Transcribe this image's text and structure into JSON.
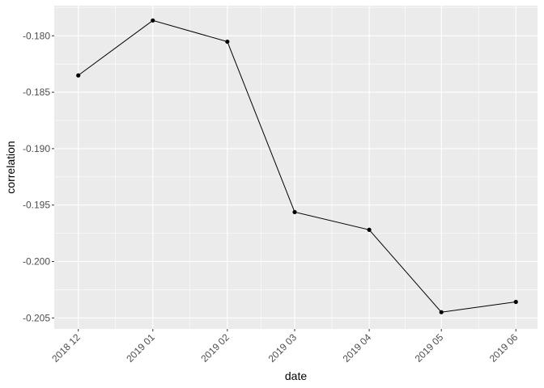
{
  "chart_data": {
    "type": "line",
    "title": "",
    "xlabel": "date",
    "ylabel": "correlation",
    "x": [
      "2018-12-01",
      "2019-01-01",
      "2019-02-01",
      "2019-03-01",
      "2019-04-01",
      "2019-05-01",
      "2019-06-01"
    ],
    "x_tick_labels": [
      "2018 12",
      "2019 01",
      "2019 02",
      "2019 03",
      "2019 04",
      "2019 05",
      "2019 06"
    ],
    "values": [
      -0.18351,
      -0.17864,
      -0.18052,
      -0.19562,
      -0.19719,
      -0.20449,
      -0.20358
    ],
    "y_ticks": [
      -0.18,
      -0.185,
      -0.19,
      -0.195,
      -0.2,
      -0.205
    ],
    "y_tick_labels": [
      "-0.180",
      "-0.185",
      "-0.190",
      "-0.195",
      "-0.200",
      "-0.205"
    ],
    "ylim": [
      -0.20598,
      -0.17733
    ],
    "xlim": [
      "2018-11-21",
      "2019-06-10"
    ],
    "grid": true,
    "markers": true,
    "colors": {
      "panel": "#ebebeb",
      "grid": "#ffffff",
      "line": "#000000"
    }
  }
}
